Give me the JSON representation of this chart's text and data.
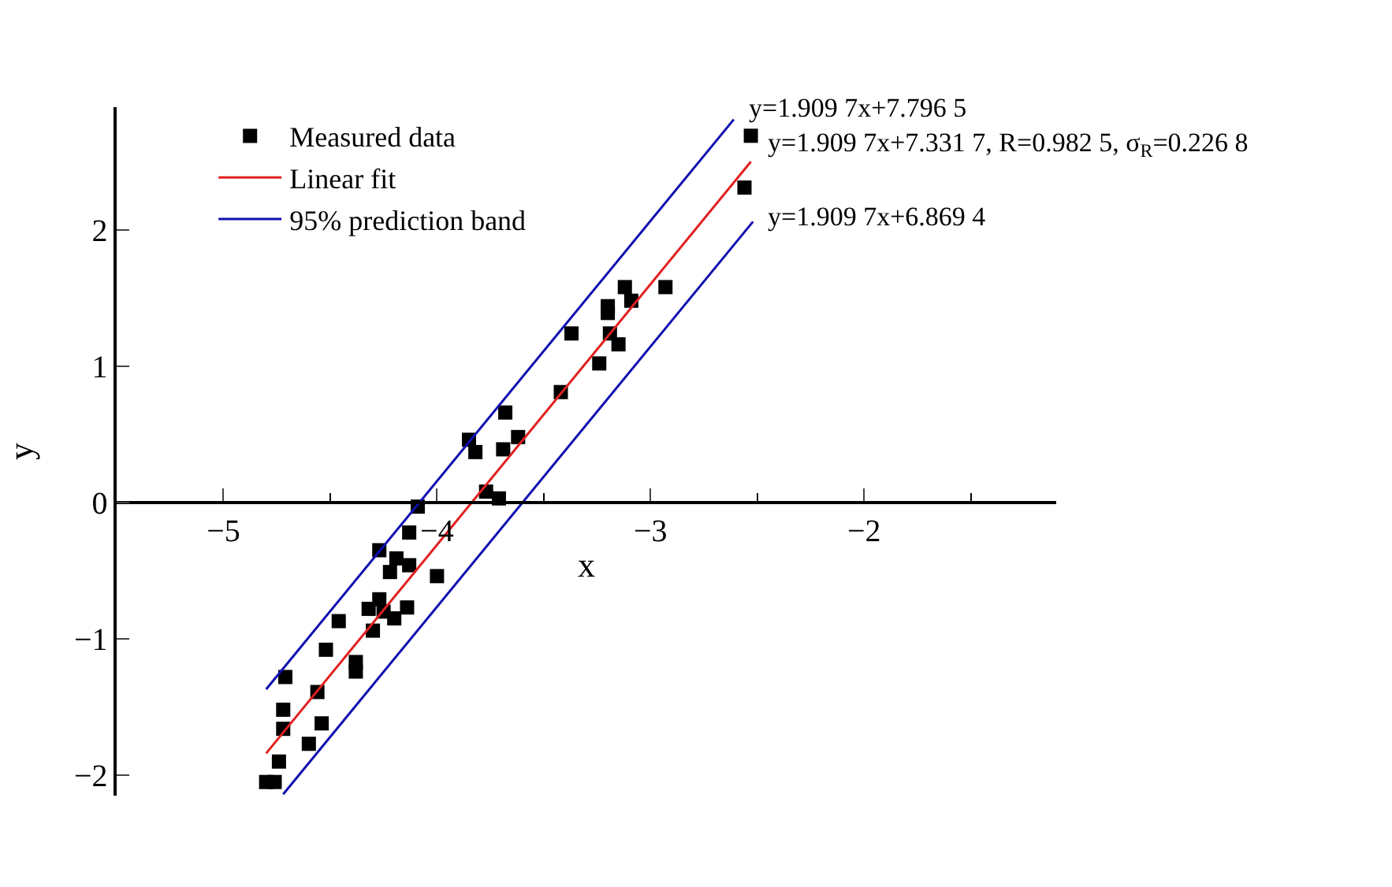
{
  "chart_data": {
    "type": "scatter",
    "xlabel": "x",
    "ylabel": "y",
    "xlim": [
      -5.5,
      -1.1
    ],
    "xticks": [
      -5,
      -4,
      -3,
      -2
    ],
    "ylim": [
      -2.15,
      2.9
    ],
    "yticks": [
      -2,
      -1,
      0,
      1,
      2
    ],
    "legend": "top left",
    "series": [
      {
        "name": "Measured data",
        "marker": "square",
        "color": "#000000",
        "x": [
          -4.8,
          -4.76,
          -4.74,
          -4.72,
          -4.72,
          -4.71,
          -4.6,
          -4.54,
          -4.56,
          -4.52,
          -4.46,
          -4.38,
          -4.38,
          -4.3,
          -4.32,
          -4.27,
          -4.25,
          -4.2,
          -4.14,
          -4.27,
          -4.22,
          -4.19,
          -4.13,
          -4.13,
          -4.0,
          -4.09,
          -3.85,
          -3.82,
          -3.77,
          -3.71,
          -3.68,
          -3.69,
          -3.62,
          -3.42,
          -3.37,
          -3.24,
          -3.2,
          -3.2,
          -3.19,
          -3.15,
          -3.12,
          -3.09,
          -2.93,
          -2.53,
          -2.56
        ],
        "values": [
          -2.05,
          -2.05,
          -1.9,
          -1.66,
          -1.52,
          -1.28,
          -1.77,
          -1.62,
          -1.39,
          -1.08,
          -0.87,
          -1.17,
          -1.24,
          -0.94,
          -0.78,
          -0.71,
          -0.8,
          -0.85,
          -0.77,
          -0.35,
          -0.51,
          -0.41,
          -0.46,
          -0.22,
          -0.54,
          -0.03,
          0.46,
          0.37,
          0.08,
          0.03,
          0.66,
          0.39,
          0.48,
          0.81,
          1.24,
          1.02,
          1.44,
          1.39,
          1.24,
          1.16,
          1.58,
          1.48,
          1.58,
          2.69,
          2.31
        ]
      },
      {
        "name": "Linear fit",
        "type": "line",
        "marker": "none",
        "color": "#e0201f",
        "x": [
          -4.8,
          -2.53
        ],
        "values": [
          -1.84,
          2.5
        ]
      },
      {
        "name": "95% prediction band",
        "type": "line",
        "marker": "none",
        "color": "#1010b0",
        "x": [
          -4.8,
          -2.61
        ],
        "values": [
          -1.37,
          2.81
        ]
      },
      {
        "type": "line",
        "marker": "none",
        "color": "#1010b0",
        "x": [
          -4.72,
          -2.52
        ],
        "values": [
          -2.14,
          2.06
        ]
      }
    ],
    "annotations": [
      "y=1.909 7x+7.796 5",
      "y=1.909 7x+7.331 7, R=0.982 5, σ$_{R}$=0.226 8",
      "y=1.909 7x+6.869 4"
    ]
  }
}
